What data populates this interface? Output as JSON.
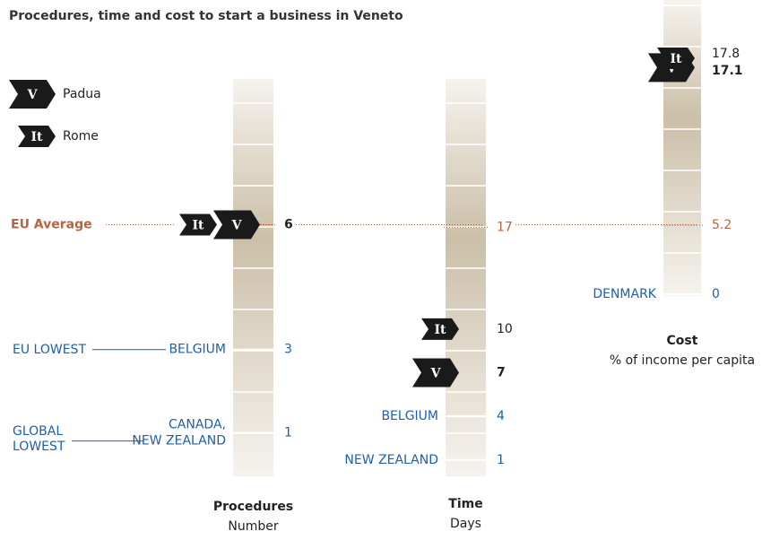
{
  "chart_data": {
    "type": "scale-infographic",
    "title": "Procedures, time and cost to start a business in Veneto",
    "legend": {
      "padua": {
        "badge": "V",
        "label": "Padua"
      },
      "rome": {
        "badge": "It",
        "label": "Rome"
      }
    },
    "eu_average_label": "EU Average",
    "eu_lowest_label": "EU LOWEST",
    "global_lowest_label": [
      "GLOBAL",
      "LOWEST"
    ],
    "colors": {
      "eu": "#b5653f",
      "benchmark": "#1f5fa8",
      "badge": "#1a1a1a"
    },
    "panels": [
      {
        "title": "Procedures",
        "subtitle": "Number",
        "ylim": [
          0,
          9.5
        ],
        "eu_average": 6,
        "rome": 6,
        "padua": 6,
        "padua_label": "6",
        "benchmarks": [
          {
            "label": [
              "BELGIUM"
            ],
            "value": 3,
            "group": "eu"
          },
          {
            "label": [
              "CANADA,",
              "NEW ZEALAND"
            ],
            "value": 1,
            "group": "global"
          }
        ]
      },
      {
        "title": "Time",
        "subtitle": "Days",
        "ylim": [
          0,
          27.2
        ],
        "eu_average": 17,
        "rome": 10,
        "padua": 7,
        "benchmarks": [
          {
            "label": [
              "BELGIUM"
            ],
            "value": 4
          },
          {
            "label": [
              "NEW ZEALAND"
            ],
            "value": 1
          }
        ]
      },
      {
        "title": "Cost",
        "subtitle": "% of income per capita",
        "ylim": [
          0,
          22.2
        ],
        "eu_average": 5.2,
        "rome": 17.8,
        "padua": 17.1,
        "benchmarks": [
          {
            "label": [
              "DENMARK"
            ],
            "value": 0
          }
        ]
      }
    ]
  }
}
